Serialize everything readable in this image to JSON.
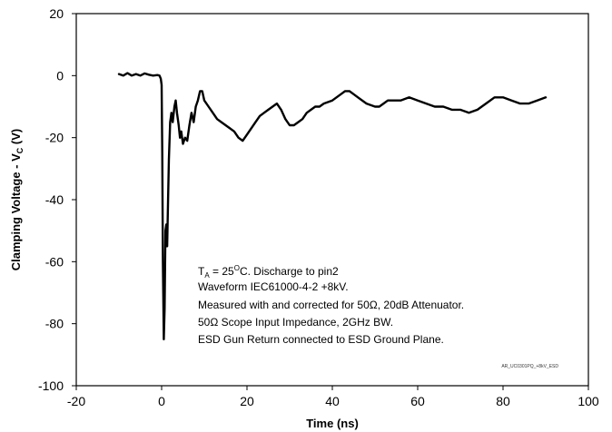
{
  "chart_data": {
    "type": "line",
    "title": "",
    "xlabel": "Time (ns)",
    "ylabel_main": "Clamping Voltage - V",
    "ylabel_sub": "C",
    "ylabel_unit": " (V)",
    "xlim": [
      -20,
      100
    ],
    "ylim": [
      -100,
      20
    ],
    "xticks": [
      -20,
      0,
      20,
      40,
      60,
      80,
      100
    ],
    "yticks": [
      20,
      0,
      -20,
      -40,
      -60,
      -80,
      -100
    ],
    "grid": false,
    "line_color": "#000000",
    "series": [
      {
        "x": [
          -10,
          -9,
          -8,
          -7,
          -6,
          -5,
          -4,
          -3,
          -2,
          -1,
          -0.5,
          -0.2,
          0,
          0.15,
          0.3,
          0.5,
          0.7,
          0.9,
          1.1,
          1.3,
          1.5,
          1.7,
          2,
          2.3,
          2.6,
          3,
          3.3,
          3.6,
          4,
          4.3,
          4.6,
          5,
          5.5,
          6,
          6.5,
          7,
          7.5,
          8,
          8.5,
          9,
          9.5,
          10,
          11,
          12,
          13,
          14,
          15,
          16,
          17,
          18,
          19,
          20,
          21,
          22,
          23,
          24,
          25,
          26,
          27,
          28,
          29,
          30,
          31,
          32,
          33,
          34,
          35,
          36,
          37,
          38,
          40,
          42,
          43,
          44,
          45,
          46,
          48,
          50,
          51,
          52,
          53,
          54,
          56,
          58,
          60,
          62,
          64,
          66,
          68,
          70,
          72,
          74,
          76,
          78,
          80,
          82,
          84,
          86,
          88,
          90
        ],
        "y": [
          0.5,
          0,
          0.8,
          0,
          0.5,
          0,
          0.7,
          0.3,
          0,
          0.2,
          0,
          -1,
          -3,
          -25,
          -60,
          -85,
          -75,
          -50,
          -48,
          -55,
          -40,
          -27,
          -15,
          -12,
          -15,
          -10,
          -8,
          -12,
          -16,
          -20,
          -18,
          -22,
          -20,
          -21,
          -16,
          -12,
          -15,
          -10,
          -8,
          -5,
          -5,
          -8,
          -10,
          -12,
          -14,
          -15,
          -16,
          -17,
          -18,
          -20,
          -21,
          -19,
          -17,
          -15,
          -13,
          -12,
          -11,
          -10,
          -9,
          -11,
          -14,
          -16,
          -16,
          -15,
          -14,
          -12,
          -11,
          -10,
          -10,
          -9,
          -8,
          -6,
          -5,
          -5,
          -6,
          -7,
          -9,
          -10,
          -10,
          -9,
          -8,
          -8,
          -8,
          -7,
          -8,
          -9,
          -10,
          -10,
          -11,
          -11,
          -12,
          -11,
          -9,
          -7,
          -7,
          -8,
          -9,
          -9,
          -8,
          -7
        ]
      }
    ]
  },
  "annotation": {
    "line1_prefix": "T",
    "line1_sub": "A",
    "line1_mid": " = 25",
    "line1_sup": "O",
    "line1_suffix": "C. Discharge to pin2",
    "line2": "Waveform IEC61000-4-2 +8kV.",
    "line3": "Measured with and corrected for 50Ω, 20dB Attenuator.",
    "line4": "50Ω Scope Input Impedance, 2GHz BW.",
    "line5": "ESD Gun Return connected to ESD Ground Plane."
  },
  "watermark": "AR_UC0301PQ_+8kV_ESD"
}
